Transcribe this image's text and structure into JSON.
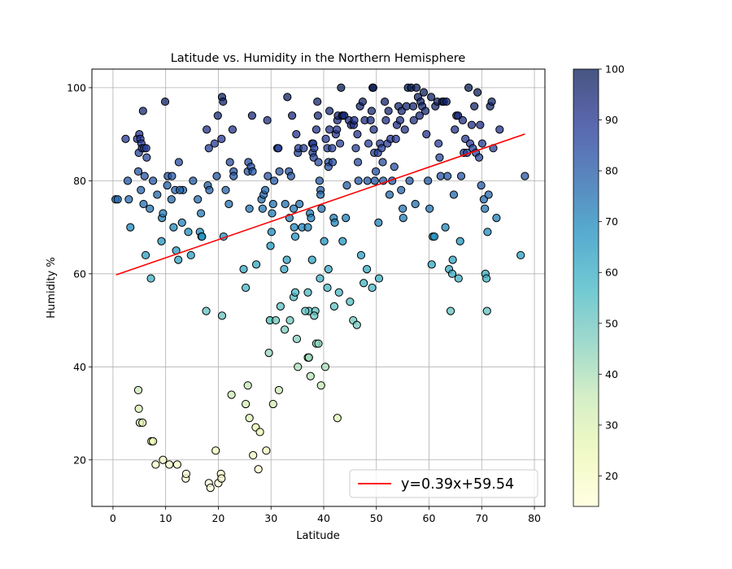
{
  "chart_data": {
    "type": "scatter",
    "title": "Latitude vs. Humidity in the Northern Hemisphere",
    "xlabel": "Latitude",
    "ylabel": "Humidity %",
    "xlim": [
      -4,
      82
    ],
    "ylim": [
      10,
      104
    ],
    "x_ticks": [
      0,
      10,
      20,
      30,
      40,
      50,
      60,
      70,
      80
    ],
    "y_ticks": [
      20,
      40,
      60,
      80,
      100
    ],
    "grid": true,
    "legend": {
      "position": "bottom-right",
      "entries": [
        "y=0.39x+59.54"
      ]
    },
    "colorbar": {
      "min": 14,
      "max": 100,
      "ticks": [
        20,
        30,
        40,
        50,
        60,
        70,
        80,
        90,
        100
      ],
      "colormap": "YlGnBu",
      "alpha": 0.75
    },
    "marker_edge_color": "#000000",
    "regression": {
      "label": "y=0.39x+59.54",
      "slope": 0.39,
      "intercept": 59.54,
      "x_range": [
        0.6,
        78.2
      ],
      "color": "#ff0000"
    },
    "points": [
      [
        0.5,
        76
      ],
      [
        0.9,
        76
      ],
      [
        2.4,
        89
      ],
      [
        2.8,
        80
      ],
      [
        3.0,
        76
      ],
      [
        3.3,
        70
      ],
      [
        4.6,
        89
      ],
      [
        4.8,
        82
      ],
      [
        4.9,
        86
      ],
      [
        5.0,
        90
      ],
      [
        5.2,
        89
      ],
      [
        5.4,
        88
      ],
      [
        5.3,
        78
      ],
      [
        5.5,
        87
      ],
      [
        5.7,
        95
      ],
      [
        5.9,
        87
      ],
      [
        6.0,
        81
      ],
      [
        6.4,
        85
      ],
      [
        5.8,
        75
      ],
      [
        6.3,
        87
      ],
      [
        7.0,
        74
      ],
      [
        7.2,
        59
      ],
      [
        7.6,
        80
      ],
      [
        6.2,
        64
      ],
      [
        8.4,
        77
      ],
      [
        9.3,
        72
      ],
      [
        9.5,
        73
      ],
      [
        9.9,
        97
      ],
      [
        9.2,
        67
      ],
      [
        10.3,
        79
      ],
      [
        10.4,
        81
      ],
      [
        11.1,
        76
      ],
      [
        11.2,
        81
      ],
      [
        11.5,
        70
      ],
      [
        11.8,
        78
      ],
      [
        12.0,
        65
      ],
      [
        12.4,
        63
      ],
      [
        12.5,
        84
      ],
      [
        13.3,
        78
      ],
      [
        12.7,
        78
      ],
      [
        13.1,
        71
      ],
      [
        14.3,
        69
      ],
      [
        14.8,
        64
      ],
      [
        15.2,
        80
      ],
      [
        16.1,
        76
      ],
      [
        16.5,
        69
      ],
      [
        16.7,
        73
      ],
      [
        16.8,
        68
      ],
      [
        16.9,
        68
      ],
      [
        17.7,
        52
      ],
      [
        17.8,
        91
      ],
      [
        18.0,
        79
      ],
      [
        18.2,
        87
      ],
      [
        18.3,
        78
      ],
      [
        19.3,
        88
      ],
      [
        19.7,
        81
      ],
      [
        19.9,
        94
      ],
      [
        20.6,
        89
      ],
      [
        20.7,
        98
      ],
      [
        20.9,
        97
      ],
      [
        21.0,
        68
      ],
      [
        20.7,
        51
      ],
      [
        21.4,
        78
      ],
      [
        22.0,
        75
      ],
      [
        22.2,
        84
      ],
      [
        22.7,
        91
      ],
      [
        22.9,
        82
      ],
      [
        22.9,
        81
      ],
      [
        24.8,
        61
      ],
      [
        25.2,
        57
      ],
      [
        25.6,
        82
      ],
      [
        25.7,
        84
      ],
      [
        25.9,
        74
      ],
      [
        26.2,
        83
      ],
      [
        26.4,
        94
      ],
      [
        26.5,
        82
      ],
      [
        27.2,
        62
      ],
      [
        28.2,
        76
      ],
      [
        28.4,
        74
      ],
      [
        28.6,
        77
      ],
      [
        28.9,
        78
      ],
      [
        29.3,
        93
      ],
      [
        29.4,
        81
      ],
      [
        29.9,
        66
      ],
      [
        30.1,
        69
      ],
      [
        30.2,
        73
      ],
      [
        30.4,
        75
      ],
      [
        30.6,
        80
      ],
      [
        31.2,
        87
      ],
      [
        31.4,
        87
      ],
      [
        31.6,
        82
      ],
      [
        32.5,
        61
      ],
      [
        32.7,
        75
      ],
      [
        33.0,
        63
      ],
      [
        33.1,
        98
      ],
      [
        33.4,
        82
      ],
      [
        33.5,
        72
      ],
      [
        33.8,
        81
      ],
      [
        34.0,
        94
      ],
      [
        34.3,
        74
      ],
      [
        34.4,
        70
      ],
      [
        34.6,
        68
      ],
      [
        34.8,
        90
      ],
      [
        35.1,
        86
      ],
      [
        35.2,
        87
      ],
      [
        35.4,
        75
      ],
      [
        35.9,
        70
      ],
      [
        36.2,
        87
      ],
      [
        37.0,
        70
      ],
      [
        37.0,
        56
      ],
      [
        37.2,
        52
      ],
      [
        37.4,
        73
      ],
      [
        37.6,
        72
      ],
      [
        37.8,
        63
      ],
      [
        37.9,
        86
      ],
      [
        37.8,
        88
      ],
      [
        38.0,
        88
      ],
      [
        38.1,
        85
      ],
      [
        38.2,
        87
      ],
      [
        38.4,
        52
      ],
      [
        38.6,
        91
      ],
      [
        38.8,
        97
      ],
      [
        38.9,
        94
      ],
      [
        39.0,
        84
      ],
      [
        39.2,
        80
      ],
      [
        39.3,
        59
      ],
      [
        39.4,
        78
      ],
      [
        39.4,
        77
      ],
      [
        39.6,
        74
      ],
      [
        40.4,
        89
      ],
      [
        40.7,
        87
      ],
      [
        40.9,
        84
      ],
      [
        40.9,
        83
      ],
      [
        41.1,
        91
      ],
      [
        41.1,
        95
      ],
      [
        41.6,
        87
      ],
      [
        41.7,
        84
      ],
      [
        41.9,
        72
      ],
      [
        42.1,
        71
      ],
      [
        42.3,
        90
      ],
      [
        42.5,
        91
      ],
      [
        42.6,
        93
      ],
      [
        42.7,
        94
      ],
      [
        43.1,
        88
      ],
      [
        43.3,
        100
      ],
      [
        43.5,
        94
      ],
      [
        43.6,
        94
      ],
      [
        43.9,
        94
      ],
      [
        44.2,
        72
      ],
      [
        44.4,
        79
      ],
      [
        44.8,
        93
      ],
      [
        45.2,
        92
      ],
      [
        45.7,
        92
      ],
      [
        45.8,
        93
      ],
      [
        46.1,
        87
      ],
      [
        46.4,
        90
      ],
      [
        46.5,
        84
      ],
      [
        46.6,
        80
      ],
      [
        46.9,
        96
      ],
      [
        47.4,
        97
      ],
      [
        47.8,
        93
      ],
      [
        48.3,
        80
      ],
      [
        48.5,
        88
      ],
      [
        48.9,
        93
      ],
      [
        49.1,
        95
      ],
      [
        49.3,
        100
      ],
      [
        49.4,
        100
      ],
      [
        49.5,
        91
      ],
      [
        49.6,
        86
      ],
      [
        49.7,
        80
      ],
      [
        49.9,
        82
      ],
      [
        50.3,
        86
      ],
      [
        50.4,
        71
      ],
      [
        50.5,
        59
      ],
      [
        50.7,
        88
      ],
      [
        51.0,
        87
      ],
      [
        51.2,
        84
      ],
      [
        51.3,
        80
      ],
      [
        51.6,
        97
      ],
      [
        51.8,
        93
      ],
      [
        52.1,
        88
      ],
      [
        52.3,
        95
      ],
      [
        52.5,
        77
      ],
      [
        52.7,
        89
      ],
      [
        53.0,
        80
      ],
      [
        53.4,
        83
      ],
      [
        53.7,
        89
      ],
      [
        53.9,
        92
      ],
      [
        54.2,
        96
      ],
      [
        54.5,
        93
      ],
      [
        54.7,
        78
      ],
      [
        54.8,
        95
      ],
      [
        55.0,
        74
      ],
      [
        55.1,
        72
      ],
      [
        55.4,
        91
      ],
      [
        55.7,
        96
      ],
      [
        56.0,
        100
      ],
      [
        56.3,
        80
      ],
      [
        56.6,
        100
      ],
      [
        57.0,
        96
      ],
      [
        57.1,
        93
      ],
      [
        57.4,
        75
      ],
      [
        57.6,
        100
      ],
      [
        57.9,
        98
      ],
      [
        58.2,
        94
      ],
      [
        58.4,
        97
      ],
      [
        58.7,
        96
      ],
      [
        59.0,
        99
      ],
      [
        59.3,
        95
      ],
      [
        59.5,
        90
      ],
      [
        59.8,
        80
      ],
      [
        60.1,
        74
      ],
      [
        60.4,
        98
      ],
      [
        60.5,
        62
      ],
      [
        60.7,
        68
      ],
      [
        61.0,
        68
      ],
      [
        61.2,
        96
      ],
      [
        61.6,
        97
      ],
      [
        61.8,
        88
      ],
      [
        62.0,
        85
      ],
      [
        62.2,
        81
      ],
      [
        62.5,
        97
      ],
      [
        62.8,
        97
      ],
      [
        63.1,
        70
      ],
      [
        63.3,
        97
      ],
      [
        63.5,
        81
      ],
      [
        63.8,
        61
      ],
      [
        64.1,
        52
      ],
      [
        64.4,
        60
      ],
      [
        64.5,
        63
      ],
      [
        64.7,
        77
      ],
      [
        64.9,
        91
      ],
      [
        65.2,
        94
      ],
      [
        65.5,
        94
      ],
      [
        65.6,
        59
      ],
      [
        65.9,
        67
      ],
      [
        66.1,
        81
      ],
      [
        66.4,
        93
      ],
      [
        66.6,
        86
      ],
      [
        66.9,
        89
      ],
      [
        67.2,
        86
      ],
      [
        67.5,
        100
      ],
      [
        67.8,
        88
      ],
      [
        68.1,
        92
      ],
      [
        68.3,
        87
      ],
      [
        68.6,
        96
      ],
      [
        68.9,
        86
      ],
      [
        69.2,
        99
      ],
      [
        69.5,
        85
      ],
      [
        69.7,
        92
      ],
      [
        69.9,
        79
      ],
      [
        70.1,
        88
      ],
      [
        70.4,
        76
      ],
      [
        70.6,
        74
      ],
      [
        70.7,
        60
      ],
      [
        70.9,
        59
      ],
      [
        71.0,
        52
      ],
      [
        71.1,
        69
      ],
      [
        71.3,
        77
      ],
      [
        71.6,
        96
      ],
      [
        71.9,
        97
      ],
      [
        72.2,
        87
      ],
      [
        72.8,
        72
      ],
      [
        73.4,
        91
      ],
      [
        77.4,
        64
      ],
      [
        78.2,
        81
      ],
      [
        4.8,
        35
      ],
      [
        4.9,
        31
      ],
      [
        5.1,
        28
      ],
      [
        5.6,
        28
      ],
      [
        7.3,
        24
      ],
      [
        7.6,
        24
      ],
      [
        8.1,
        19
      ],
      [
        9.5,
        20
      ],
      [
        10.7,
        19
      ],
      [
        12.2,
        19
      ],
      [
        13.8,
        16
      ],
      [
        13.9,
        17
      ],
      [
        18.2,
        15
      ],
      [
        18.5,
        14
      ],
      [
        19.5,
        22
      ],
      [
        20.0,
        15
      ],
      [
        20.5,
        17
      ],
      [
        20.6,
        16
      ],
      [
        22.5,
        34
      ],
      [
        25.2,
        32
      ],
      [
        25.6,
        36
      ],
      [
        25.9,
        29
      ],
      [
        26.6,
        21
      ],
      [
        27.1,
        27
      ],
      [
        27.6,
        18
      ],
      [
        27.9,
        26
      ],
      [
        29.1,
        22
      ],
      [
        29.6,
        43
      ],
      [
        29.8,
        50
      ],
      [
        29.8,
        50
      ],
      [
        30.4,
        32
      ],
      [
        30.9,
        50
      ],
      [
        31.5,
        35
      ],
      [
        31.8,
        53
      ],
      [
        32.6,
        48
      ],
      [
        33.6,
        50
      ],
      [
        34.3,
        55
      ],
      [
        34.6,
        56
      ],
      [
        34.9,
        46
      ],
      [
        35.1,
        40
      ],
      [
        36.5,
        52
      ],
      [
        37.0,
        42
      ],
      [
        37.2,
        42
      ],
      [
        37.5,
        38
      ],
      [
        38.2,
        51
      ],
      [
        38.6,
        45
      ],
      [
        39.0,
        45
      ],
      [
        39.5,
        36
      ],
      [
        40.1,
        67
      ],
      [
        40.3,
        40
      ],
      [
        40.7,
        57
      ],
      [
        40.9,
        61
      ],
      [
        42.0,
        53
      ],
      [
        42.6,
        29
      ],
      [
        42.9,
        56
      ],
      [
        43.6,
        67
      ],
      [
        45.0,
        54
      ],
      [
        45.6,
        50
      ],
      [
        46.3,
        49
      ],
      [
        47.1,
        64
      ],
      [
        47.6,
        58
      ],
      [
        48.2,
        61
      ],
      [
        49.2,
        57
      ]
    ]
  }
}
